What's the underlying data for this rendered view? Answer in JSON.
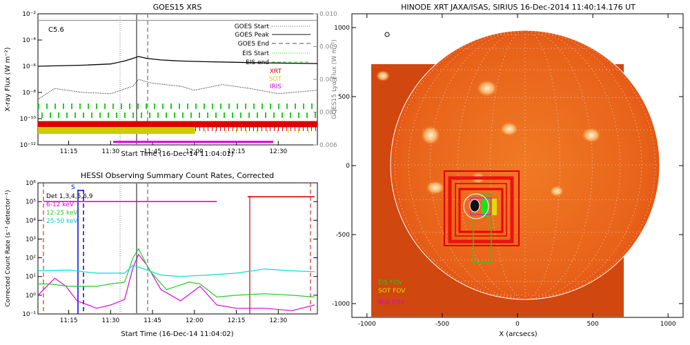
{
  "chart_data": [
    {
      "type": "line",
      "title": "GOES15 XRS",
      "xlabel": "Start Time (16-Dec-14 11:04:01)",
      "ylabel": "X-ray Flux (W m⁻²)",
      "y2label": "GOES15 Lyα Flux (W m⁻²)",
      "xlim": [
        "11:04",
        "12:44"
      ],
      "ylim": [
        1e-12,
        0.01
      ],
      "y_scale": "log",
      "y2lim": [
        0.006,
        0.01
      ],
      "x_ticks": [
        "11:15",
        "11:30",
        "11:45",
        "12:00",
        "12:15",
        "12:30"
      ],
      "y_ticks": [
        "10⁻¹²",
        "10⁻¹⁰",
        "10⁻⁸",
        "10⁻⁶",
        "10⁻⁴",
        "10⁻²"
      ],
      "y2_ticks": [
        "0.006",
        "0.007",
        "0.008",
        "0.009",
        "0.010"
      ],
      "annotation": "C5.6",
      "legend": [
        "GOES Start",
        "GOES Peak",
        "GOES End",
        "EIS Start",
        "EIS end",
        "XRT",
        "SOT",
        "IRIS"
      ],
      "legend_colors": [
        "#555555",
        "#888888",
        "#888888",
        "#22cc22",
        "#22cc22",
        "#dd0000",
        "#cccc00",
        "#dd00dd"
      ],
      "markers": {
        "goes_start": "11:35",
        "goes_peak": "11:40",
        "goes_end": "11:44"
      },
      "series": [
        {
          "name": "",
          "color": "#000000",
          "x": [
            "11:04",
            "11:20",
            "11:30",
            "11:35",
            "11:38",
            "11:40",
            "11:43",
            "11:48",
            "11:55",
            "12:05",
            "12:15",
            "12:25",
            "12:44"
          ],
          "values": [
            1e-06,
            1.2e-06,
            1.5e-06,
            2.5e-06,
            4e-06,
            5.5e-06,
            4e-06,
            3e-06,
            2.5e-06,
            2.2e-06,
            2e-06,
            1.8e-06,
            1.6e-06
          ]
        },
        {
          "name": "",
          "color": "#000000",
          "style": "dotted",
          "x": [
            "11:04",
            "11:10",
            "11:20",
            "11:30",
            "11:38",
            "11:40",
            "11:45",
            "11:55",
            "12:00",
            "12:10",
            "12:20",
            "12:30",
            "12:44"
          ],
          "values": [
            3e-09,
            2e-08,
            1e-08,
            8e-09,
            3e-08,
            1e-07,
            5e-08,
            3e-08,
            1.5e-08,
            4e-08,
            2e-08,
            8e-09,
            1.5e-08
          ]
        },
        {
          "name": "",
          "color": "#999999",
          "axis": "y2",
          "x": [
            "11:04",
            "12:44"
          ],
          "values": [
            0.0098,
            0.0098
          ]
        }
      ]
    },
    {
      "type": "line",
      "title": "HESSI Observing Summary Count Rates, Corrected",
      "xlabel": "Start Time (16-Dec-14 11:04:02)",
      "ylabel": "Corrected Count Rate (s⁻¹ detector⁻¹)",
      "xlim": [
        "11:04",
        "12:44"
      ],
      "ylim": [
        0.1,
        1000000.0
      ],
      "y_scale": "log",
      "x_ticks": [
        "11:15",
        "11:30",
        "11:45",
        "12:00",
        "12:15",
        "12:30"
      ],
      "y_ticks": [
        "10⁻¹",
        "10⁰",
        "10¹",
        "10²",
        "10³",
        "10⁴",
        "10⁵",
        "10⁶"
      ],
      "legend": [
        "Det 1,3,4,5,6,9",
        "6-12 keV",
        "12-25 keV",
        "25-50 keV"
      ],
      "legend_colors": [
        "#000000",
        "#dd00dd",
        "#22cc22",
        "#00dddd"
      ],
      "flag": "S",
      "series": [
        {
          "name": "6-12 keV",
          "color": "#dd00dd",
          "x": [
            "11:04",
            "11:10",
            "11:14",
            "11:18",
            "11:25",
            "11:30",
            "11:35",
            "11:38",
            "11:40",
            "11:43",
            "11:48",
            "11:55",
            "12:02",
            "12:08",
            "12:15",
            "12:25",
            "12:35",
            "12:43"
          ],
          "values": [
            1.0,
            8.0,
            3.0,
            0.5,
            0.2,
            0.3,
            0.6,
            30,
            150,
            40,
            2,
            0.5,
            3,
            0.3,
            0.2,
            0.2,
            0.15,
            0.3
          ]
        },
        {
          "name": "12-25 keV",
          "color": "#22cc22",
          "x": [
            "11:04",
            "11:08",
            "11:15",
            "11:25",
            "11:30",
            "11:35",
            "11:38",
            "11:40",
            "11:44",
            "11:50",
            "11:58",
            "12:02",
            "12:08",
            "12:15",
            "12:25",
            "12:35",
            "12:43"
          ],
          "values": [
            4,
            4,
            3,
            3,
            4,
            5,
            100,
            300,
            20,
            2,
            5,
            4,
            0.8,
            1,
            1.2,
            1,
            0.8
          ]
        },
        {
          "name": "25-50 keV",
          "color": "#00dddd",
          "x": [
            "11:04",
            "11:15",
            "11:25",
            "11:35",
            "11:38",
            "11:42",
            "11:48",
            "11:55",
            "12:05",
            "12:15",
            "12:25",
            "12:35",
            "12:43"
          ],
          "values": [
            20,
            22,
            15,
            15,
            40,
            25,
            12,
            10,
            12,
            15,
            25,
            20,
            18
          ]
        },
        {
          "name": "",
          "color": "#dd00dd",
          "x": [
            "11:06",
            "12:08"
          ],
          "values": [
            100000,
            100000
          ]
        },
        {
          "name": "",
          "color": "#dd0000",
          "x": [
            "12:19",
            "12:43"
          ],
          "values": [
            180000,
            180000
          ]
        }
      ]
    },
    {
      "type": "heatmap",
      "title": "HINODE XRT JAXA/ISAS, SIRIUS 16-Dec-2014 11:40:14.176 UT",
      "xlabel": "X (arcsecs)",
      "ylabel": "",
      "xlim": [
        -1100,
        1100
      ],
      "ylim": [
        -1100,
        1100
      ],
      "x_ticks": [
        "-1000",
        "-500",
        "0",
        "500",
        "1000"
      ],
      "y_ticks": [
        "-1000",
        "-500",
        "0",
        "500",
        "1000"
      ],
      "legend": [
        "EIS FOV",
        "SOT FOV",
        "IRIS FOV"
      ],
      "legend_colors": [
        "#22cc22",
        "#dddd00",
        "#dd00dd"
      ]
    }
  ]
}
